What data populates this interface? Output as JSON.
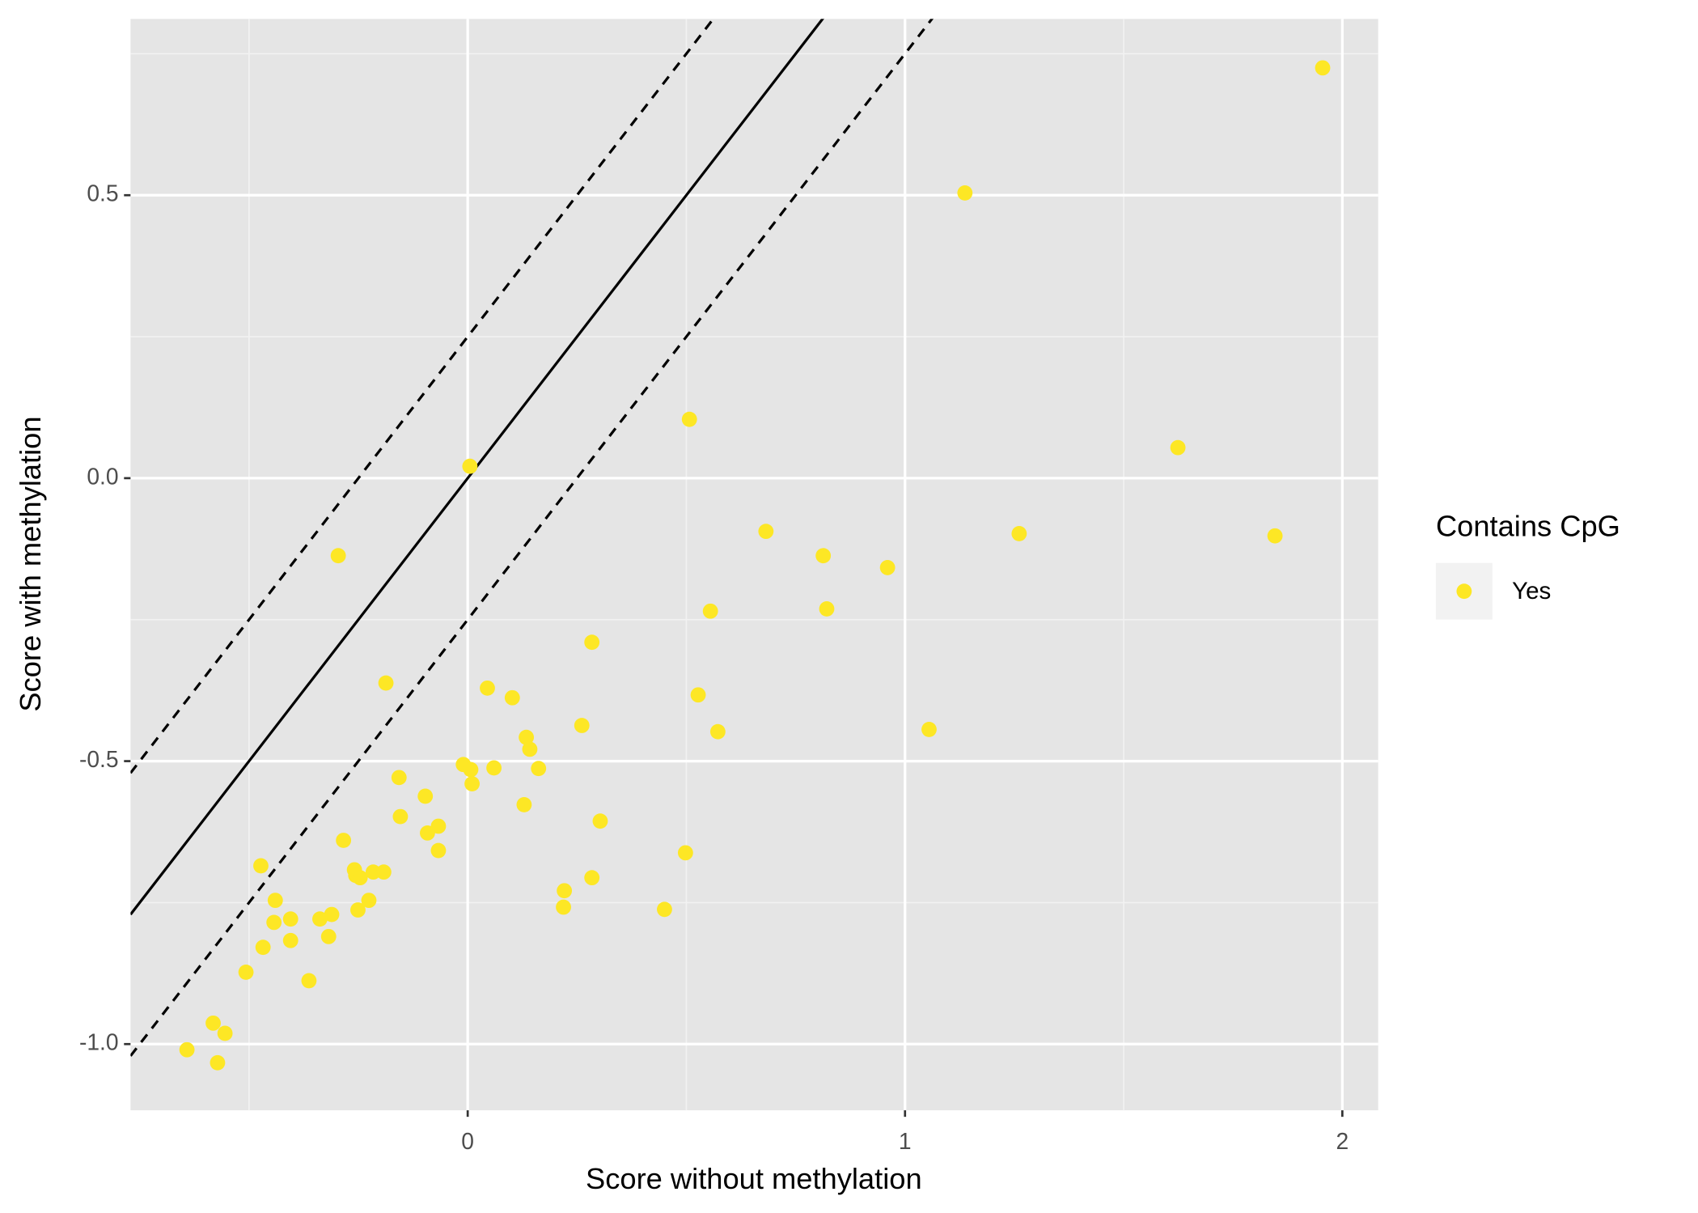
{
  "chart_data": {
    "type": "scatter",
    "x_label": "Score without methylation",
    "y_label": "Score with methylation",
    "legend_title": "Contains CpG",
    "legend_position": "right",
    "grid": true,
    "xlim": [
      -0.771,
      2.082
    ],
    "ylim": [
      -1.117,
      0.8115
    ],
    "xticks": [
      0,
      1,
      2
    ],
    "yticks": [
      {
        "value": -1,
        "label": "-1.0"
      },
      {
        "value": -0.5,
        "label": "-0.5"
      },
      {
        "value": 0,
        "label": "0.0"
      },
      {
        "value": 0.5,
        "label": "0.5"
      }
    ],
    "x_minor_grid": [
      -0.5,
      0.5,
      1.5
    ],
    "y_minor_grid": [
      -0.75,
      -0.25,
      0.25,
      0.75
    ],
    "reference_lines": [
      {
        "slope": 1,
        "intercept": 0,
        "style": "solid"
      },
      {
        "slope": 1,
        "intercept": 0.25,
        "style": "dashed"
      },
      {
        "slope": 1,
        "intercept": -0.25,
        "style": "dashed"
      }
    ],
    "series": [
      {
        "name": "Yes",
        "color": "#FDE725",
        "x": [
          1.955,
          1.137,
          0.507,
          1.624,
          0.005,
          0.682,
          1.261,
          1.846,
          -0.296,
          0.813,
          0.96,
          0.555,
          0.821,
          0.284,
          -0.187,
          0.045,
          0.102,
          0.527,
          0.261,
          0.572,
          1.055,
          0.134,
          0.142,
          -0.01,
          0.007,
          0.06,
          0.162,
          0.01,
          -0.157,
          -0.097,
          0.129,
          -0.154,
          -0.067,
          0.303,
          -0.092,
          -0.284,
          -0.067,
          0.498,
          -0.473,
          -0.259,
          -0.216,
          -0.192,
          -0.256,
          -0.246,
          0.284,
          0.221,
          -0.44,
          -0.226,
          0.219,
          0.45,
          -0.251,
          -0.311,
          -0.338,
          -0.405,
          -0.443,
          -0.318,
          -0.405,
          -0.468,
          -0.507,
          -0.363,
          -0.582,
          -0.555,
          -0.642,
          -0.572
        ],
        "values": [
          0.725,
          0.504,
          0.104,
          0.054,
          0.021,
          -0.094,
          -0.098,
          -0.102,
          -0.137,
          -0.137,
          -0.158,
          -0.235,
          -0.231,
          -0.29,
          -0.362,
          -0.371,
          -0.388,
          -0.383,
          -0.437,
          -0.448,
          -0.444,
          -0.458,
          -0.479,
          -0.506,
          -0.515,
          -0.512,
          -0.513,
          -0.54,
          -0.529,
          -0.562,
          -0.577,
          -0.598,
          -0.615,
          -0.606,
          -0.627,
          -0.64,
          -0.658,
          -0.662,
          -0.685,
          -0.692,
          -0.696,
          -0.696,
          -0.702,
          -0.706,
          -0.706,
          -0.729,
          -0.746,
          -0.746,
          -0.758,
          -0.762,
          -0.763,
          -0.771,
          -0.779,
          -0.779,
          -0.785,
          -0.81,
          -0.817,
          -0.829,
          -0.873,
          -0.888,
          -0.963,
          -0.981,
          -1.01,
          -1.033
        ]
      }
    ]
  }
}
